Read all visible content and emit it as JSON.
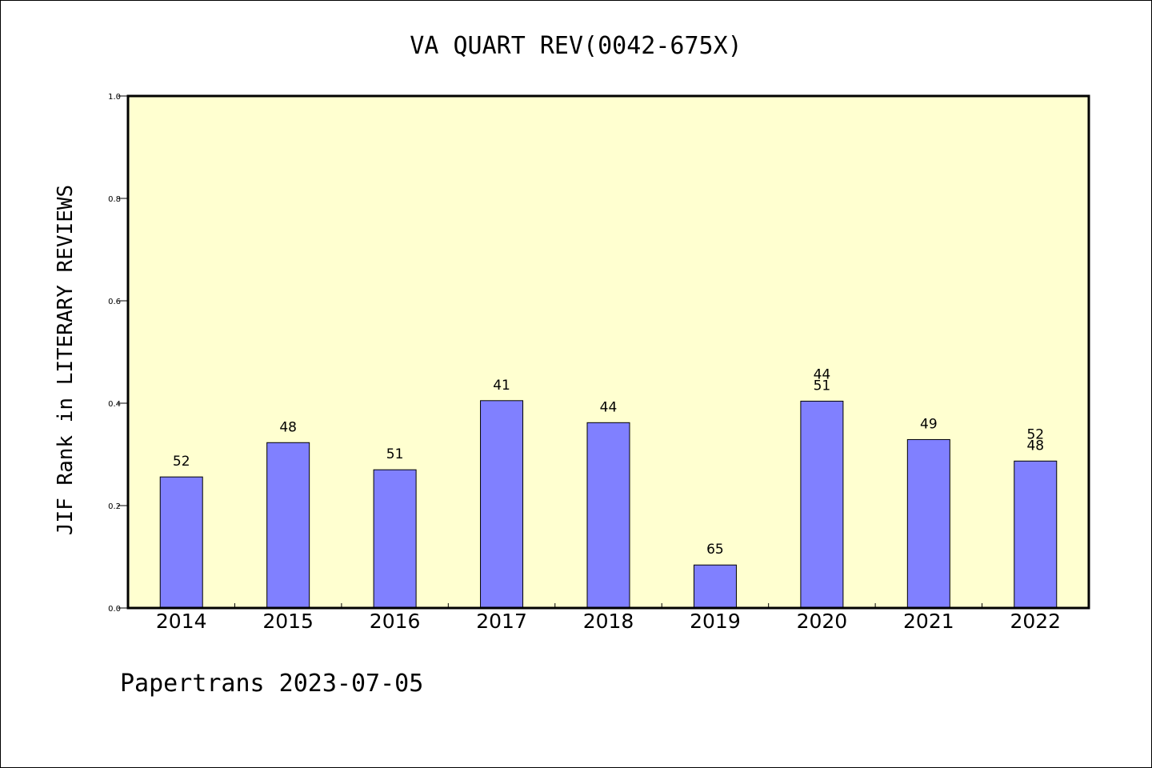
{
  "chart_data": {
    "type": "bar",
    "title": "VA QUART REV(0042-675X)",
    "ylabel": "JIF Rank in LITERARY REVIEWS",
    "xlabel": "",
    "footer": "Papertrans 2023-07-05",
    "categories": [
      "2014",
      "2015",
      "2016",
      "2017",
      "2018",
      "2019",
      "2020",
      "2021",
      "2022"
    ],
    "values": [
      0.256,
      0.323,
      0.27,
      0.405,
      0.362,
      0.084,
      0.404,
      0.329,
      0.287
    ],
    "bar_labels": [
      [
        "52"
      ],
      [
        "48"
      ],
      [
        "51"
      ],
      [
        "41"
      ],
      [
        "44"
      ],
      [
        "65"
      ],
      [
        "44",
        "51"
      ],
      [
        "49"
      ],
      [
        "52",
        "48"
      ]
    ],
    "ylim": [
      0,
      1.0
    ],
    "yticks": [
      "0.0",
      "0.2",
      "0.4",
      "0.6",
      "0.8",
      "1.0"
    ],
    "grid": false,
    "legend": "none",
    "colors": {
      "plot_background": "#ffffd0",
      "bar_fill": "#8080ff",
      "bar_stroke": "#000000"
    }
  }
}
